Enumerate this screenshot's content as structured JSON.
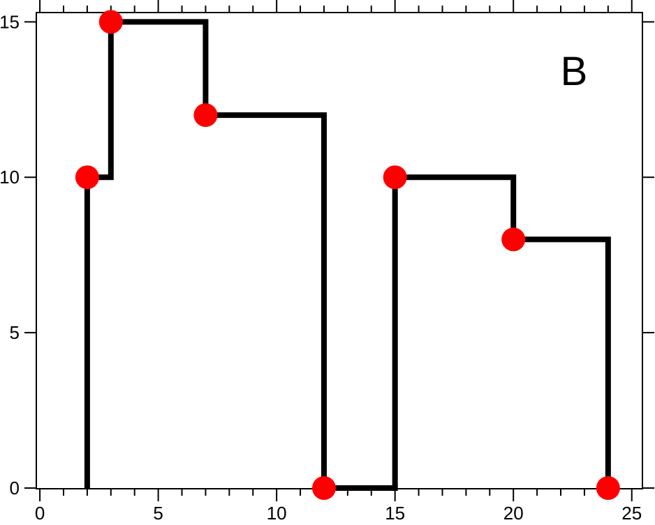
{
  "chart_data": {
    "type": "line",
    "line_style": "steps-post",
    "title": "",
    "xlabel": "",
    "ylabel": "",
    "xlim": [
      -0.15,
      25.45
    ],
    "ylim": [
      0,
      15.3
    ],
    "x_ticks": [
      "0",
      "5",
      "10",
      "15",
      "20",
      "25"
    ],
    "x_tick_values": [
      0,
      5,
      10,
      15,
      20,
      25
    ],
    "x_minor_step": 1,
    "y_ticks": [
      "0",
      "5",
      "10",
      "15"
    ],
    "y_tick_values": [
      0,
      5,
      10,
      15
    ],
    "grid": false,
    "annotation": "B",
    "step_start": {
      "x": 2,
      "y": 0
    },
    "series": [
      {
        "x": [
          2,
          3,
          7,
          12,
          15,
          20,
          24
        ],
        "y": [
          10,
          15,
          12,
          0,
          10,
          8,
          0
        ],
        "line_color": "#000000",
        "marker_color": "#ff0000"
      }
    ]
  }
}
